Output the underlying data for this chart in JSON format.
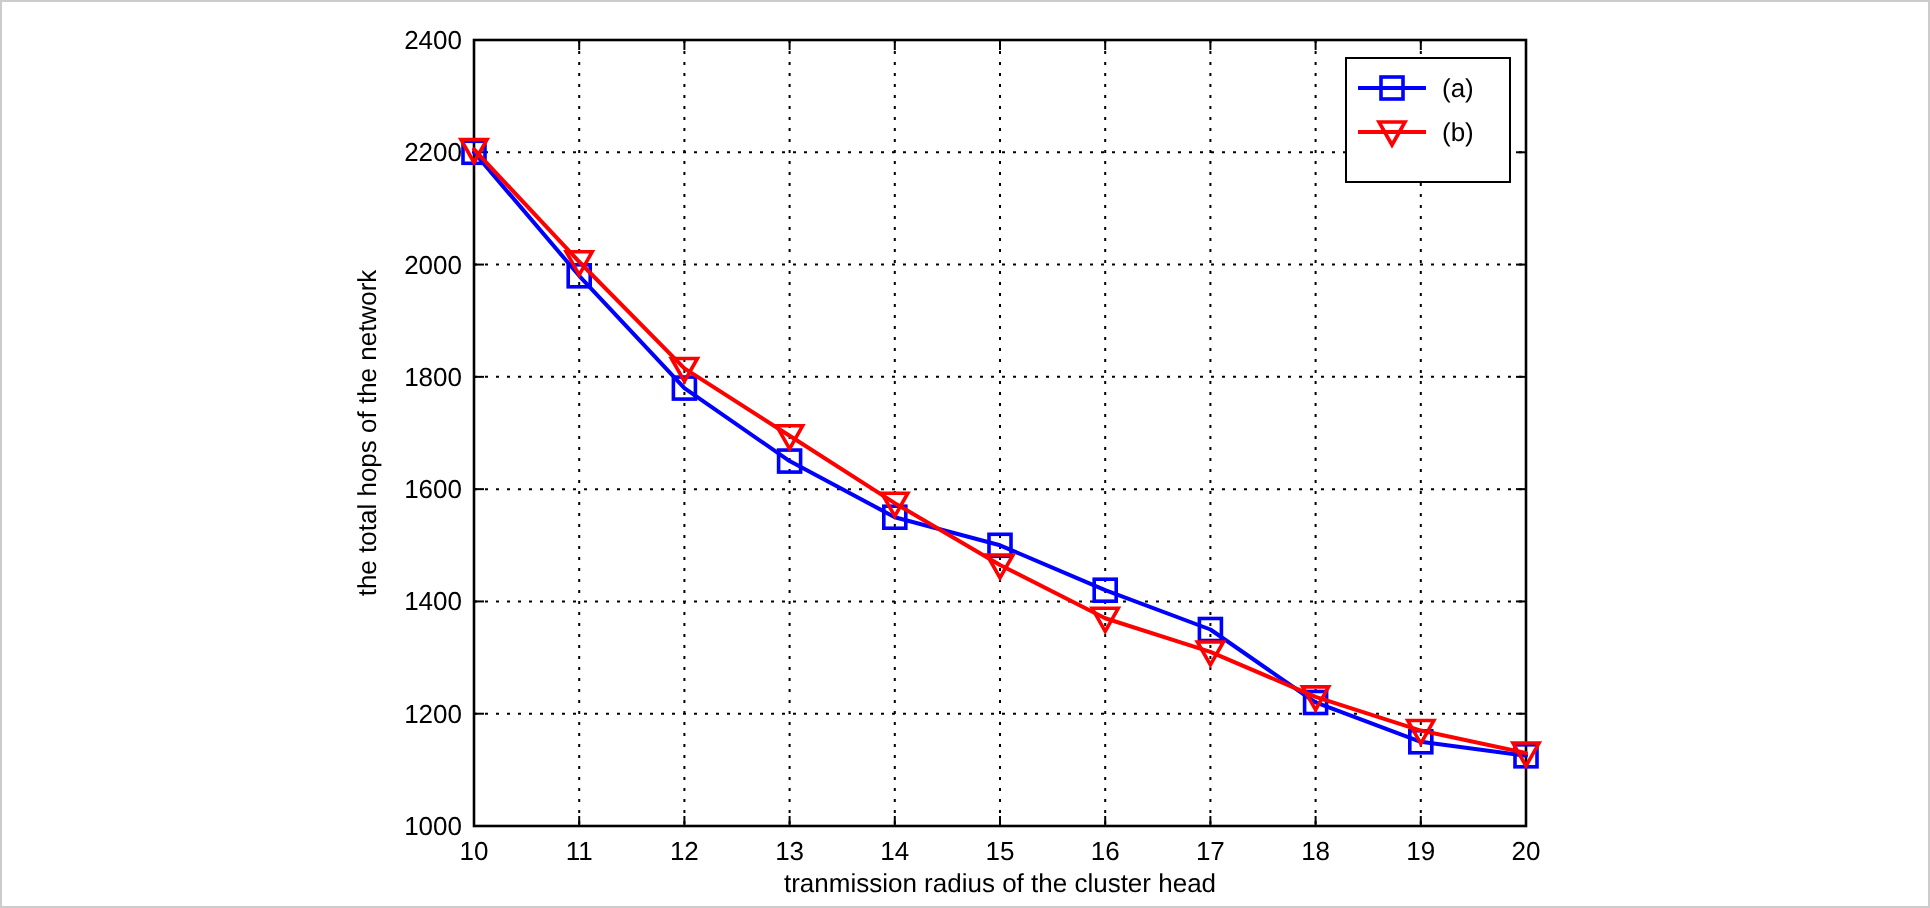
{
  "chart_data": {
    "type": "line",
    "xlabel": "tranmission radius of the cluster head",
    "ylabel": "the total hops of the network",
    "x": [
      10,
      11,
      12,
      13,
      14,
      15,
      16,
      17,
      18,
      19,
      20
    ],
    "series": [
      {
        "name": "(a)",
        "color": "#0000ff",
        "marker": "square",
        "values": [
          2200,
          1980,
          1780,
          1650,
          1550,
          1500,
          1420,
          1350,
          1220,
          1150,
          1125
        ]
      },
      {
        "name": "(b)",
        "color": "#ff0000",
        "marker": "triangle-down",
        "values": [
          2205,
          2005,
          1815,
          1695,
          1575,
          1465,
          1370,
          1310,
          1230,
          1170,
          1130
        ]
      }
    ],
    "xlim": [
      10,
      20
    ],
    "xticks": [
      10,
      11,
      12,
      13,
      14,
      15,
      16,
      17,
      18,
      19,
      20
    ],
    "ylim": [
      1000,
      2400
    ],
    "yticks": [
      1000,
      1200,
      1400,
      1600,
      1800,
      2000,
      2200,
      2400
    ],
    "grid": true,
    "legend": "top right",
    "line_style": "solid"
  }
}
